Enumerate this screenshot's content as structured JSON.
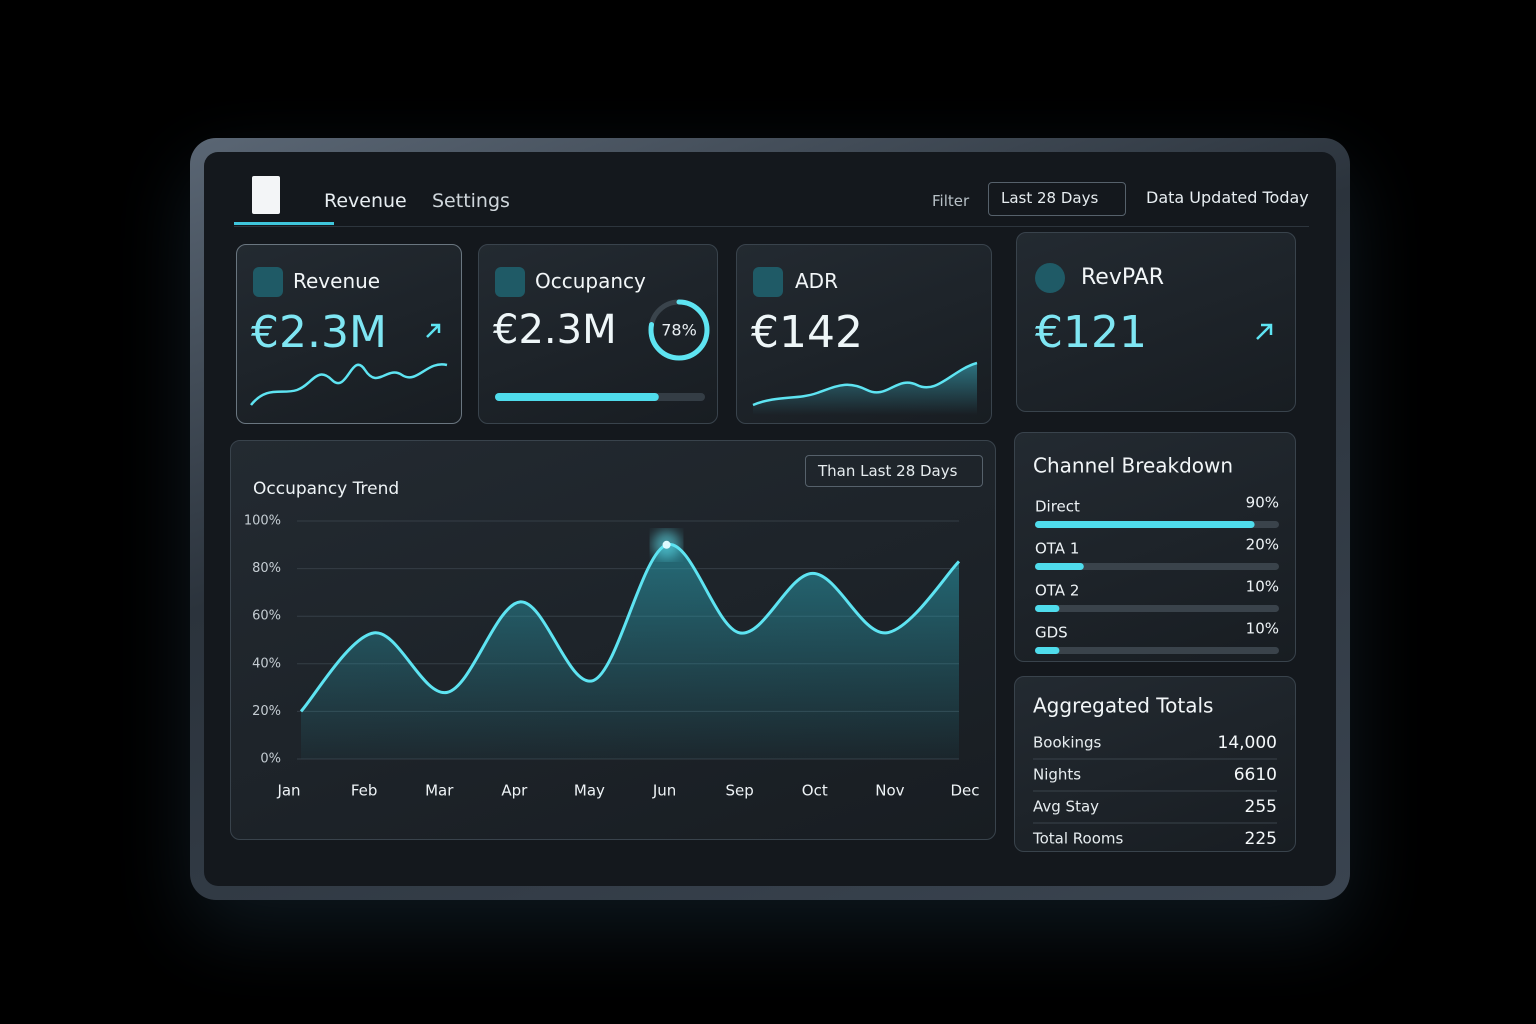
{
  "nav": {
    "tabs": [
      "Revenue",
      "Settings"
    ],
    "filter_label": "Filter",
    "filter_value": "Last 28 Days",
    "status": "Data Updated Today"
  },
  "kpis": [
    {
      "title": "Revenue",
      "value": "€2.3M"
    },
    {
      "title": "Occupancy",
      "value": "€2.3M",
      "ring": 78,
      "ring_label": "78%"
    },
    {
      "title": "ADR",
      "value": "€142"
    },
    {
      "title": "RevPAR",
      "value": "€121"
    }
  ],
  "chart_data": {
    "type": "line",
    "title": "Occupancy Trend",
    "compare": "Than Last 28 Days",
    "categories": [
      "Jan",
      "Feb",
      "Mar",
      "Apr",
      "May",
      "Jun",
      "Sep",
      "Oct",
      "Nov",
      "Dec"
    ],
    "values": [
      20,
      53,
      28,
      66,
      33,
      90,
      53,
      78,
      53,
      83
    ],
    "color": "#5ee4f2",
    "ylim": [
      0,
      100
    ],
    "yticks": [
      {
        "value": 0,
        "label": "0%"
      },
      {
        "value": 20,
        "label": "20%"
      },
      {
        "value": 40,
        "label": "40%"
      },
      {
        "value": 60,
        "label": "60%"
      },
      {
        "value": 80,
        "label": "80%"
      },
      {
        "value": 100,
        "label": "100%"
      }
    ],
    "grid": true
  },
  "channels": {
    "title": "Channel Breakdown",
    "categories": [
      "Direct",
      "OTA 1",
      "OTA 2",
      "GDS"
    ],
    "values": [
      90,
      20,
      10,
      10
    ],
    "value_labels": [
      "90%",
      "20%",
      "10%",
      "10%"
    ],
    "xlim": [
      0,
      100
    ],
    "color": "#4fdcec"
  },
  "totals": {
    "title": "Aggregated Totals",
    "rows": [
      [
        "Bookings",
        "14,000"
      ],
      [
        "Nights",
        "6610"
      ],
      [
        "Avg Stay",
        "255"
      ],
      [
        "Total Rooms",
        "225"
      ]
    ]
  }
}
